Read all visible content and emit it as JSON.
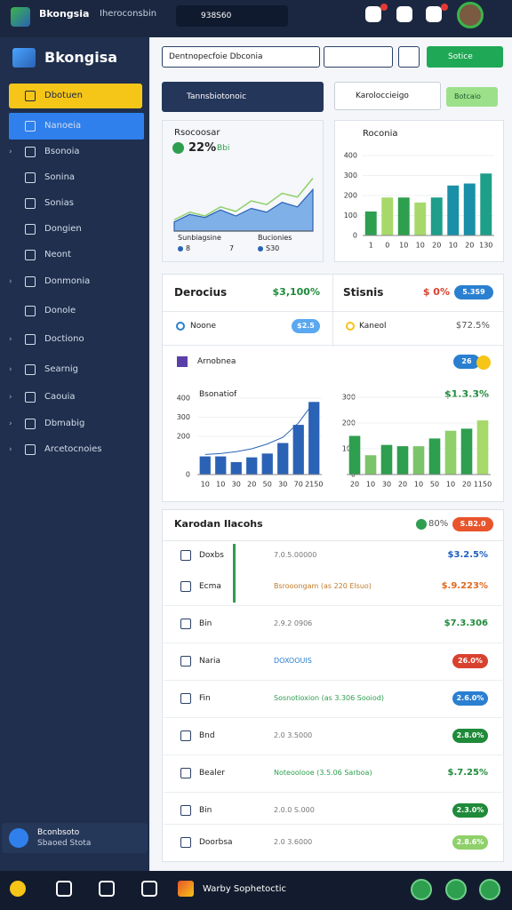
{
  "topbar": {
    "brand": "Bkongsia",
    "section": "Iheroconsbin",
    "search": "938S60"
  },
  "sidebar": {
    "brand": "Bkongisa",
    "menu": [
      "Dbotuen",
      "Nanoeia",
      "Bsonoia",
      "Sonina",
      "Sonias",
      "Dongien",
      "Neont",
      "Donmonia",
      "Donole",
      "Doctiono",
      "Searnig",
      "Caouia",
      "Dbmabig",
      "Arcetocnoies"
    ],
    "user": {
      "name": "Bconbsoto",
      "role": "Sbaoed Stota"
    }
  },
  "toolbar": {
    "select": "Dentnopecfoie Dbconia",
    "button": "Sotice",
    "action": "Tannsbiotonoic",
    "search": "Karoloccieigo",
    "search_button": "Botcaio"
  },
  "trend_card": {
    "title": "Rsocoosar",
    "value": "22%",
    "delta": "Bbi",
    "ylim": [
      0,
      100
    ],
    "values": [
      12,
      22,
      18,
      28,
      20,
      30,
      25,
      38,
      32,
      55
    ],
    "line": [
      15,
      25,
      20,
      32,
      26,
      40,
      35,
      50,
      45,
      70
    ],
    "legend": [
      "Sunbiagsine",
      "Bucionies"
    ],
    "legend_values": [
      "8",
      "7",
      "S30"
    ]
  },
  "bars_card": {
    "title": "Roconia",
    "ylim": [
      0,
      400
    ],
    "yticks": [
      0,
      100,
      200,
      300,
      400
    ],
    "categories": [
      "1",
      "0",
      "10",
      "10",
      "20",
      "10",
      "20",
      "130"
    ],
    "values": [
      120,
      190,
      190,
      165,
      190,
      250,
      260,
      310
    ],
    "colors": [
      "#2e9e4f",
      "#a6d96a",
      "#2e9e4f",
      "#a6d96a",
      "#1f9e89",
      "#1a8fa8",
      "#1a8fa8",
      "#1f9e89"
    ]
  },
  "summary": {
    "left": {
      "title": "Derocius",
      "value": "$3,100%",
      "row_label": "Noone",
      "row_badge": "$2.5"
    },
    "right": {
      "title": "Stisnis",
      "value": "$ 0%",
      "badge": "5.3S9",
      "row_label": "Kaneol",
      "row_value": "$72.5%"
    },
    "section": "Arnobnea",
    "section_badge": "26",
    "left_chart": {
      "label": "Bsonatiof",
      "ylim": [
        0,
        400
      ],
      "yticks": [
        0,
        200,
        300,
        400
      ],
      "categories": [
        "10",
        "10",
        "30",
        "20",
        "50",
        "30",
        "70",
        "2150"
      ],
      "values": [
        95,
        95,
        65,
        90,
        110,
        165,
        260,
        380
      ],
      "trend": [
        105,
        110,
        120,
        135,
        160,
        195,
        270,
        380
      ],
      "color": "#2a62b5"
    },
    "right_chart": {
      "label": "$1.3.3%",
      "ylim": [
        0,
        300
      ],
      "yticks": [
        0,
        100,
        200,
        300
      ],
      "categories": [
        "20",
        "10",
        "30",
        "20",
        "10",
        "50",
        "10",
        "20",
        "1150"
      ],
      "values": [
        150,
        75,
        115,
        110,
        110,
        140,
        170,
        178,
        210
      ],
      "colors": [
        "#2e9e4f",
        "#7cc46a",
        "#2e9e4f",
        "#2e9e4f",
        "#7cc46a",
        "#2e9e4f",
        "#8fd06a",
        "#2e9e4f",
        "#a6d96a"
      ]
    }
  },
  "table": {
    "title": "Karodan Ilacohs",
    "stat": "80%",
    "badge": "S.B2.0",
    "rows": [
      {
        "name": "Doxbs",
        "detail": "7.0.5.00000",
        "value": "$3.2.5%",
        "color": "#1f5fbf"
      },
      {
        "name": "Ecma",
        "detail": "Bsrooongam (as 220 Elsuo)",
        "value": "$.9.223%",
        "color": "#e06a20"
      },
      {
        "name": "Bin",
        "detail": "2.9.2 0906",
        "value": "$7.3.306",
        "color": "#1f8a3a"
      },
      {
        "name": "Naria",
        "detail": "DOXOOUIS",
        "badge": "26.0%",
        "color": "#d9412f"
      },
      {
        "name": "Fin",
        "detail": "Sosnotioxion (as 3.306 Sooiod)",
        "badge": "2.6.0%",
        "color": "#2a7fd0"
      },
      {
        "name": "Bnd",
        "detail": "2.0 3.5000",
        "badge": "2.8.0%",
        "color": "#1f8a3a"
      },
      {
        "name": "Bealer",
        "detail": "Noteoolooe (3.5.06 Sarboa)",
        "value": "$.7.25%",
        "color": "#1f8a3a"
      },
      {
        "name": "Bin",
        "detail": "2.0.0 S.000",
        "badge": "2.3.0%",
        "color": "#1f8a3a"
      },
      {
        "name": "Doorbsa",
        "detail": "2.0 3.6000",
        "badge": "2.8.6%",
        "color": "#8fd06a"
      }
    ]
  },
  "bottom_nav": {
    "title": "Warby Sophetoctic"
  }
}
